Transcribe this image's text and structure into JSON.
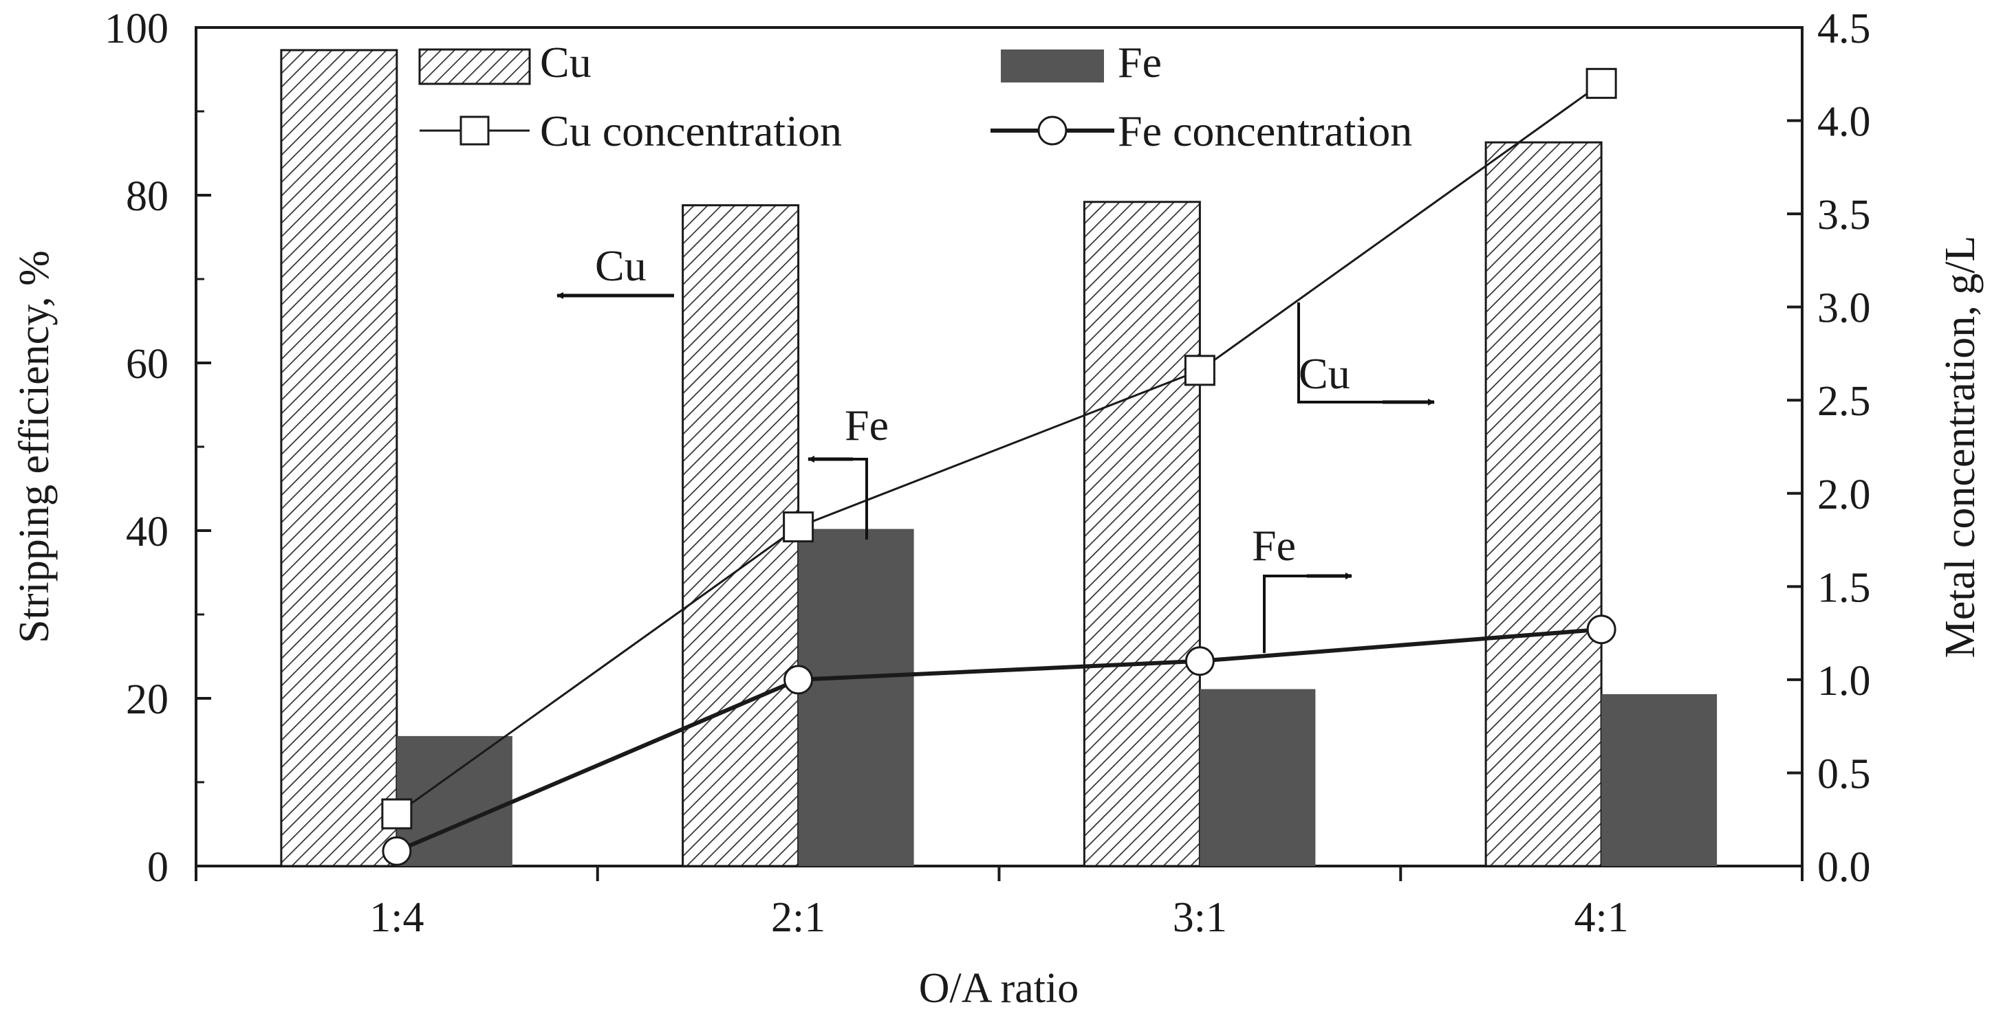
{
  "chart_data": {
    "type": "bar",
    "title": "",
    "categories": [
      "1:4",
      "2:1",
      "3:1",
      "4:1"
    ],
    "xlabel": "O/A ratio",
    "ylabel_left": "Stripping  efficiency, %",
    "ylabel_right": "Metal concentration, g/L",
    "ylim_left": [
      0,
      100
    ],
    "ylim_right": [
      0,
      4.5
    ],
    "yticks_left": [
      "0",
      "20",
      "40",
      "60",
      "80",
      "100"
    ],
    "yticks_right": [
      "0.0",
      "0.5",
      "1.0",
      "1.5",
      "2.0",
      "2.5",
      "3.0",
      "3.5",
      "4.0",
      "4.5"
    ],
    "grid": false,
    "legend_position": "top",
    "bar_series": [
      {
        "name": "Cu",
        "axis": "left",
        "values": [
          97.3,
          78.8,
          79.2,
          86.3
        ],
        "pattern": "hatched"
      },
      {
        "name": "Fe",
        "axis": "left",
        "values": [
          15.5,
          40.2,
          21.1,
          20.5
        ],
        "color": "#555555"
      }
    ],
    "line_series": [
      {
        "name": "Cu concentration",
        "axis": "right",
        "values": [
          0.28,
          1.82,
          2.66,
          4.2
        ],
        "marker": "square",
        "stroke": "thin"
      },
      {
        "name": "Fe concentration",
        "axis": "right",
        "values": [
          0.08,
          1.0,
          1.1,
          1.27
        ],
        "marker": "circle",
        "stroke": "thick"
      }
    ],
    "annotations": [
      {
        "text": "Cu",
        "arrow": "left",
        "target": "Cu bars"
      },
      {
        "text": "Fe",
        "arrow": "left",
        "target": "Fe bars"
      },
      {
        "text": "Cu",
        "arrow": "right",
        "target": "Cu concentration line"
      },
      {
        "text": "Fe",
        "arrow": "right",
        "target": "Fe concentration line"
      }
    ]
  }
}
